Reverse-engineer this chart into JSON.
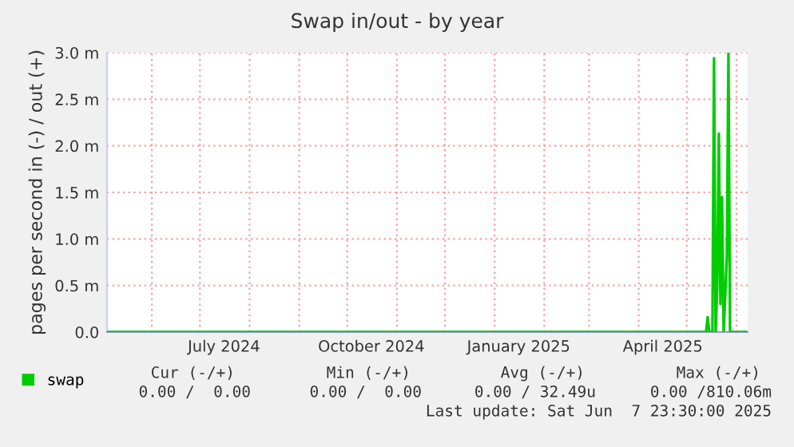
{
  "chart_data": {
    "type": "line",
    "title": "Swap in/out - by year",
    "ylabel": "pages per second in (-) / out (+)",
    "x": [
      "2024-05-04",
      "2025-05-13",
      "2025-05-14",
      "2025-05-15",
      "2025-05-17",
      "2025-05-18",
      "2025-05-19",
      "2025-05-20",
      "2025-05-21",
      "2025-05-22",
      "2025-05-23",
      "2025-05-24",
      "2025-05-26",
      "2025-05-27",
      "2025-05-28",
      "2025-06-07"
    ],
    "series": [
      {
        "name": "swap",
        "color": "#00cc00",
        "values": [
          0,
          0,
          0.16,
          0,
          0,
          2.94,
          0,
          0.5,
          2.13,
          0.3,
          1.45,
          0,
          0.8,
          2.99,
          0,
          0
        ]
      }
    ],
    "xlim": [
      "2024-05-04",
      "2025-06-08"
    ],
    "xticks": [
      {
        "value": "2024-06-01",
        "label": null
      },
      {
        "value": "2024-07-01",
        "label": null
      },
      {
        "value": "2024-07-16",
        "label": "July 2024"
      },
      {
        "value": "2024-08-01",
        "label": null
      },
      {
        "value": "2024-09-01",
        "label": null
      },
      {
        "value": "2024-10-01",
        "label": null
      },
      {
        "value": "2024-10-16",
        "label": "October 2024"
      },
      {
        "value": "2024-11-01",
        "label": null
      },
      {
        "value": "2024-12-01",
        "label": null
      },
      {
        "value": "2025-01-01",
        "label": null
      },
      {
        "value": "2025-01-16",
        "label": "January 2025"
      },
      {
        "value": "2025-02-01",
        "label": null
      },
      {
        "value": "2025-03-01",
        "label": null
      },
      {
        "value": "2025-04-01",
        "label": null
      },
      {
        "value": "2025-04-16",
        "label": "April 2025"
      },
      {
        "value": "2025-05-01",
        "label": null
      },
      {
        "value": "2025-06-01",
        "label": null
      }
    ],
    "ylim": [
      0,
      3.0
    ],
    "yticks": [
      {
        "value": 0,
        "label": "0.0"
      },
      {
        "value": 0.5,
        "label": "0.5 m"
      },
      {
        "value": 1.0,
        "label": "1.0 m"
      },
      {
        "value": 1.5,
        "label": "1.5 m"
      },
      {
        "value": 2.0,
        "label": "2.0 m"
      },
      {
        "value": 2.5,
        "label": "2.5 m"
      },
      {
        "value": 3.0,
        "label": "3.0 m"
      }
    ],
    "grid": true,
    "legend": "bottom left",
    "marker": "none",
    "line_style": "solid",
    "annotations": [
      "Cur (-/+)",
      "Min (-/+)",
      "Avg (-/+)",
      "Max (-/+)",
      "0.00 /  0.00",
      "0.00 /  0.00",
      "0.00 / 32.49u",
      "0.00 /810.06m",
      "Last update: Sat Jun  7 23:30:00 2025"
    ]
  }
}
